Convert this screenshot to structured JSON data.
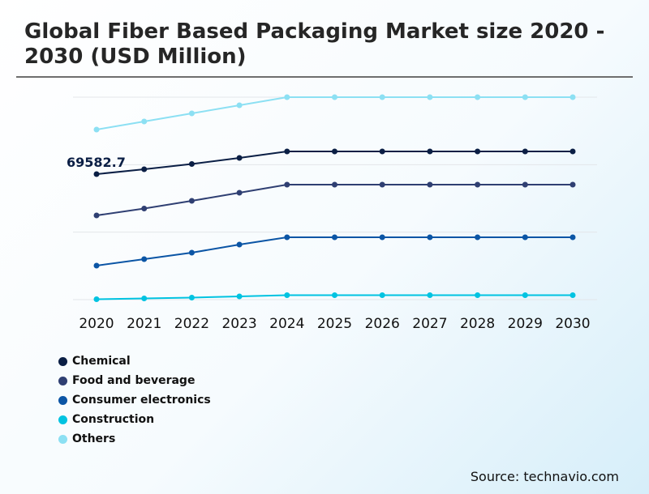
{
  "chart_data": {
    "type": "line",
    "title": "Global Fiber Based Packaging Market size 2020 - 2030 (USD Million)",
    "x": [
      "2020",
      "2021",
      "2022",
      "2023",
      "2024",
      "2025",
      "2026",
      "2027",
      "2028",
      "2029",
      "2030"
    ],
    "ylim": [
      0,
      112230
    ],
    "gridlines": [
      0,
      37410,
      74820,
      112230
    ],
    "grid": true,
    "y_tick_labels_shown": false,
    "legend_position": "bottom-left",
    "annotation": {
      "series": "Chemical",
      "x": "2020",
      "text": "69582.7"
    },
    "series": [
      {
        "name": "Chemical",
        "color": "#0b1f45",
        "values": [
          69582.7,
          72270,
          75190,
          78560,
          82150,
          82150,
          82150,
          82150,
          82150,
          82150,
          82150
        ]
      },
      {
        "name": "Food and beverage",
        "color": "#2f3f72",
        "values": [
          46690,
          50500,
          54770,
          59260,
          63740,
          63740,
          63740,
          63740,
          63740,
          63740,
          63740
        ]
      },
      {
        "name": "Consumer electronics",
        "color": "#0b55a5",
        "values": [
          18850,
          22450,
          26040,
          30530,
          34570,
          34570,
          34570,
          34570,
          34570,
          34570,
          34570
        ]
      },
      {
        "name": "Construction",
        "color": "#00c3e1",
        "values": [
          220,
          670,
          1120,
          1800,
          2470,
          2470,
          2470,
          2470,
          2470,
          2470,
          2470
        ]
      },
      {
        "name": "Others",
        "color": "#8ce0f3",
        "values": [
          94270,
          98760,
          103250,
          107740,
          112230,
          112230,
          112230,
          112230,
          112230,
          112230,
          112230
        ]
      }
    ]
  },
  "source": "Source: technavio.com"
}
